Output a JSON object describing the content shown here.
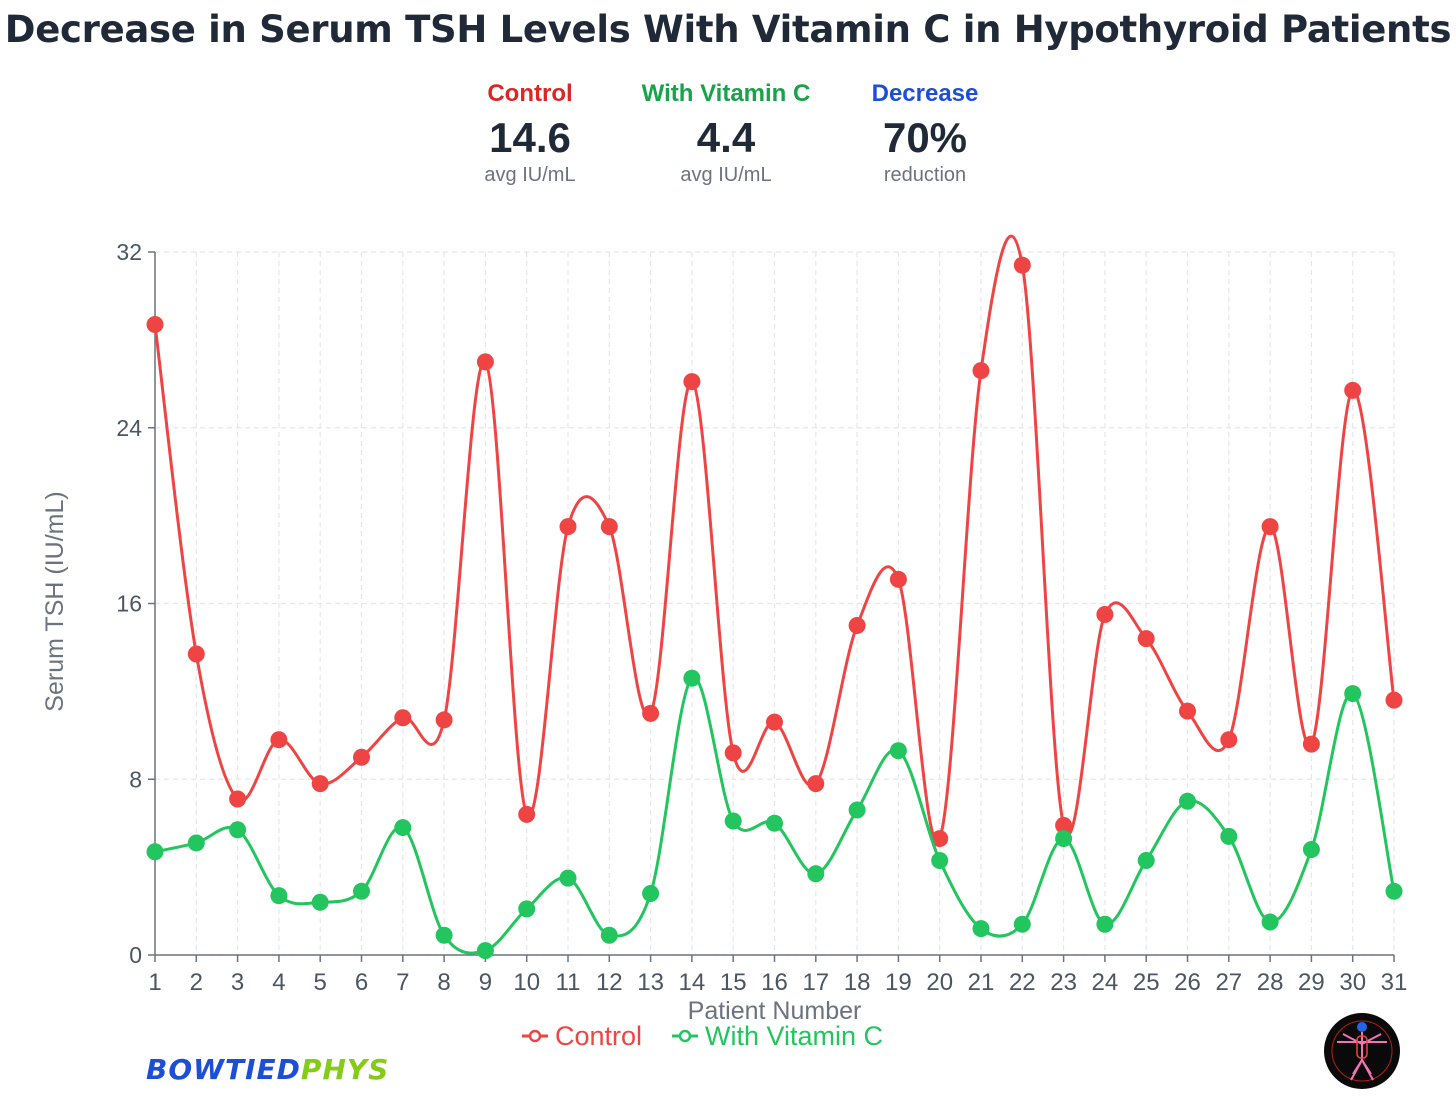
{
  "title": "Decrease in Serum TSH Levels With Vitamin C in Hypothyroid Patients",
  "stats": [
    {
      "label": "Control",
      "value": "14.6",
      "sub": "avg IU/mL",
      "color": "#dc2626"
    },
    {
      "label": "With Vitamin C",
      "value": "4.4",
      "sub": "avg IU/mL",
      "color": "#16a34a"
    },
    {
      "label": "Decrease",
      "value": "70%",
      "sub": "reduction",
      "color": "#1d4ed8"
    }
  ],
  "brand": {
    "part1": "BOWTIED",
    "part2": "PHYS"
  },
  "logo_icon": "vitruvian-man-logo-icon",
  "colors": {
    "control": "#ef4444",
    "vitamin_c": "#22c55e",
    "grid": "#e5e7eb",
    "axis": "#6b7280"
  },
  "chart_data": {
    "type": "line",
    "xlabel": "Patient Number",
    "ylabel": "Serum TSH (IU/mL)",
    "x": [
      1,
      2,
      3,
      4,
      5,
      6,
      7,
      8,
      9,
      10,
      11,
      12,
      13,
      14,
      15,
      16,
      17,
      18,
      19,
      20,
      21,
      22,
      23,
      24,
      25,
      26,
      27,
      28,
      29,
      30,
      31
    ],
    "ylim": [
      0,
      32
    ],
    "yticks": [
      0,
      8,
      16,
      24,
      32
    ],
    "grid": true,
    "legend": "bottom-center",
    "series": [
      {
        "name": "Control",
        "color": "#ef4444",
        "values": [
          28.7,
          13.7,
          7.1,
          9.8,
          7.8,
          9.0,
          10.8,
          10.7,
          27.0,
          6.4,
          19.5,
          19.5,
          11.0,
          26.1,
          9.2,
          10.6,
          7.8,
          15.0,
          17.1,
          5.3,
          26.6,
          31.4,
          5.9,
          15.5,
          14.4,
          11.1,
          9.8,
          19.5,
          9.6,
          25.7,
          11.6
        ]
      },
      {
        "name": "With Vitamin C",
        "color": "#22c55e",
        "values": [
          4.7,
          5.1,
          5.7,
          2.7,
          2.4,
          2.9,
          5.8,
          0.9,
          0.2,
          2.1,
          3.5,
          0.9,
          2.8,
          12.6,
          6.1,
          6.0,
          3.7,
          6.6,
          9.3,
          4.3,
          1.2,
          1.4,
          5.3,
          1.4,
          4.3,
          7.0,
          5.4,
          1.5,
          4.8,
          11.9,
          2.9
        ]
      }
    ]
  }
}
